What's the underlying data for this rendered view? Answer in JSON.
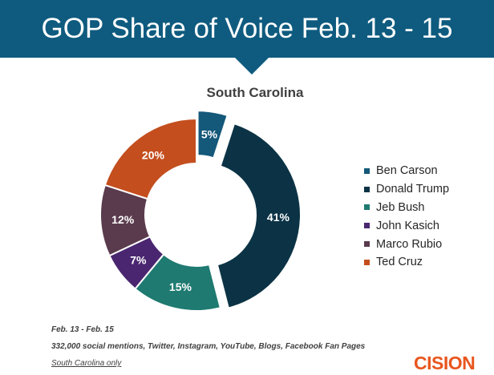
{
  "header": {
    "title": "GOP Share of Voice Feb. 13 - 15"
  },
  "chart_data": {
    "type": "pie",
    "title": "South Carolina",
    "categories": [
      "Ben Carson",
      "Donald Trump",
      "Jeb Bush",
      "John Kasich",
      "Marco Rubio",
      "Ted Cruz"
    ],
    "values": [
      5,
      41,
      15,
      7,
      12,
      20
    ],
    "labels": [
      "5%",
      "41%",
      "15%",
      "7%",
      "12%",
      "20%"
    ],
    "colors": [
      "#14587a",
      "#0b3345",
      "#1f7a71",
      "#4a2670",
      "#5a3b4d",
      "#c44e1e"
    ],
    "exploded": [
      "Ben Carson",
      "Donald Trump"
    ],
    "legend_position": "right"
  },
  "footnotes": {
    "date_range": "Feb. 13 -  Feb. 15",
    "mentions": "332,000 social mentions, Twitter, Instagram, YouTube, Blogs, Facebook Fan Pages",
    "scope": "South Carolina only"
  },
  "brand": {
    "logo_text": "CISION",
    "banner_color": "#0f5b7f",
    "logo_color": "#e8561e"
  }
}
